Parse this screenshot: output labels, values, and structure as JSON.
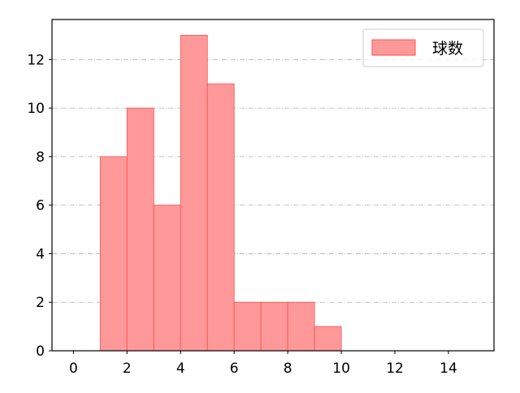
{
  "chart_data": {
    "type": "bar",
    "subtype": "histogram",
    "bins": [
      [
        1,
        2
      ],
      [
        2,
        3
      ],
      [
        3,
        4
      ],
      [
        4,
        5
      ],
      [
        5,
        6
      ],
      [
        6,
        7
      ],
      [
        7,
        8
      ],
      [
        8,
        9
      ],
      [
        9,
        10
      ]
    ],
    "series": [
      {
        "name": "球数",
        "values": [
          8,
          10,
          6,
          13,
          11,
          2,
          2,
          2,
          1
        ]
      }
    ],
    "xlim": [
      -0.8,
      15.7
    ],
    "ylim": [
      0,
      13.65
    ],
    "xticks": [
      0,
      2,
      4,
      6,
      8,
      10,
      12,
      14
    ],
    "yticks": [
      0,
      2,
      4,
      6,
      8,
      10,
      12
    ],
    "xlabel": "",
    "ylabel": "",
    "title": "",
    "grid": {
      "y": true,
      "x": false,
      "style": "dash-dot"
    },
    "legend": {
      "position": "top-right",
      "entries": [
        "球数"
      ]
    },
    "colors": {
      "bar_fill": "#ff9999",
      "bar_edge": "#ff4d4d",
      "grid": "#b0b0b0"
    }
  }
}
